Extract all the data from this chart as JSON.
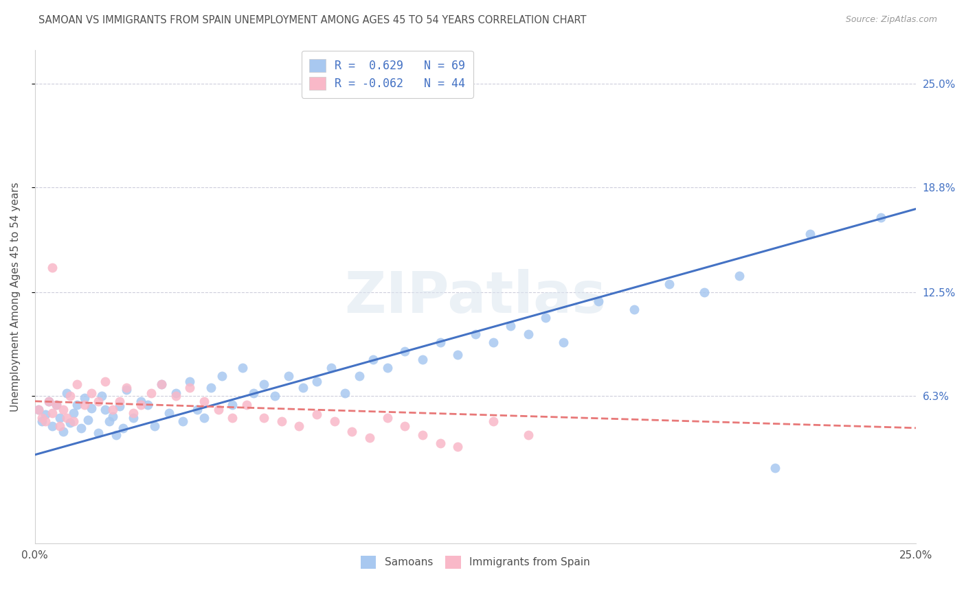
{
  "title": "SAMOAN VS IMMIGRANTS FROM SPAIN UNEMPLOYMENT AMONG AGES 45 TO 54 YEARS CORRELATION CHART",
  "source": "Source: ZipAtlas.com",
  "ylabel": "Unemployment Among Ages 45 to 54 years",
  "xlim": [
    0.0,
    0.25
  ],
  "ylim": [
    -0.025,
    0.27
  ],
  "xticks": [
    0.0,
    0.05,
    0.1,
    0.15,
    0.2,
    0.25
  ],
  "xtick_labels": [
    "0.0%",
    "",
    "",
    "",
    "",
    "25.0%"
  ],
  "ytick_labels_right": [
    "6.3%",
    "12.5%",
    "18.8%",
    "25.0%"
  ],
  "ytick_vals_right": [
    0.063,
    0.125,
    0.188,
    0.25
  ],
  "watermark": "ZIPatlas",
  "samoans_color": "#a8c8f0",
  "spain_color": "#f9b8c8",
  "blue_line_color": "#4472c4",
  "pink_line_color": "#e87878",
  "background_color": "#ffffff",
  "grid_color": "#c8c8d8",
  "title_color": "#505050",
  "r_value_color": "#4472c4",
  "samoan_R": 0.629,
  "samoan_N": 69,
  "spain_R": -0.062,
  "spain_N": 44,
  "samoan_scatter_x": [
    0.001,
    0.002,
    0.003,
    0.004,
    0.005,
    0.006,
    0.007,
    0.008,
    0.009,
    0.01,
    0.011,
    0.012,
    0.013,
    0.014,
    0.015,
    0.016,
    0.018,
    0.019,
    0.02,
    0.021,
    0.022,
    0.023,
    0.024,
    0.025,
    0.026,
    0.028,
    0.03,
    0.032,
    0.034,
    0.036,
    0.038,
    0.04,
    0.042,
    0.044,
    0.046,
    0.048,
    0.05,
    0.053,
    0.056,
    0.059,
    0.062,
    0.065,
    0.068,
    0.072,
    0.076,
    0.08,
    0.084,
    0.088,
    0.092,
    0.096,
    0.1,
    0.105,
    0.11,
    0.115,
    0.12,
    0.125,
    0.13,
    0.135,
    0.14,
    0.145,
    0.15,
    0.16,
    0.17,
    0.18,
    0.19,
    0.2,
    0.21,
    0.22,
    0.24
  ],
  "samoan_scatter_y": [
    0.055,
    0.048,
    0.052,
    0.06,
    0.045,
    0.058,
    0.05,
    0.042,
    0.065,
    0.047,
    0.053,
    0.058,
    0.044,
    0.062,
    0.049,
    0.056,
    0.041,
    0.063,
    0.055,
    0.048,
    0.051,
    0.04,
    0.057,
    0.044,
    0.067,
    0.05,
    0.06,
    0.058,
    0.045,
    0.07,
    0.053,
    0.065,
    0.048,
    0.072,
    0.055,
    0.05,
    0.068,
    0.075,
    0.058,
    0.08,
    0.065,
    0.07,
    0.063,
    0.075,
    0.068,
    0.072,
    0.08,
    0.065,
    0.075,
    0.085,
    0.08,
    0.09,
    0.085,
    0.095,
    0.088,
    0.1,
    0.095,
    0.105,
    0.1,
    0.11,
    0.095,
    0.12,
    0.115,
    0.13,
    0.125,
    0.135,
    0.02,
    0.16,
    0.17
  ],
  "spain_scatter_x": [
    0.001,
    0.002,
    0.003,
    0.004,
    0.005,
    0.006,
    0.007,
    0.008,
    0.009,
    0.01,
    0.011,
    0.012,
    0.014,
    0.016,
    0.018,
    0.02,
    0.022,
    0.024,
    0.026,
    0.028,
    0.03,
    0.033,
    0.036,
    0.04,
    0.044,
    0.048,
    0.052,
    0.056,
    0.06,
    0.065,
    0.07,
    0.075,
    0.08,
    0.085,
    0.09,
    0.095,
    0.1,
    0.105,
    0.11,
    0.115,
    0.12,
    0.13,
    0.14,
    0.005
  ],
  "spain_scatter_y": [
    0.055,
    0.05,
    0.048,
    0.06,
    0.053,
    0.058,
    0.045,
    0.055,
    0.05,
    0.063,
    0.048,
    0.07,
    0.058,
    0.065,
    0.06,
    0.072,
    0.055,
    0.06,
    0.068,
    0.053,
    0.058,
    0.065,
    0.07,
    0.063,
    0.068,
    0.06,
    0.055,
    0.05,
    0.058,
    0.05,
    0.048,
    0.045,
    0.052,
    0.048,
    0.042,
    0.038,
    0.05,
    0.045,
    0.04,
    0.035,
    0.033,
    0.048,
    0.04,
    0.14
  ],
  "blue_line_x": [
    0.0,
    0.25
  ],
  "blue_line_y": [
    0.028,
    0.175
  ],
  "pink_line_x": [
    0.0,
    0.25
  ],
  "pink_line_y": [
    0.06,
    0.044
  ]
}
